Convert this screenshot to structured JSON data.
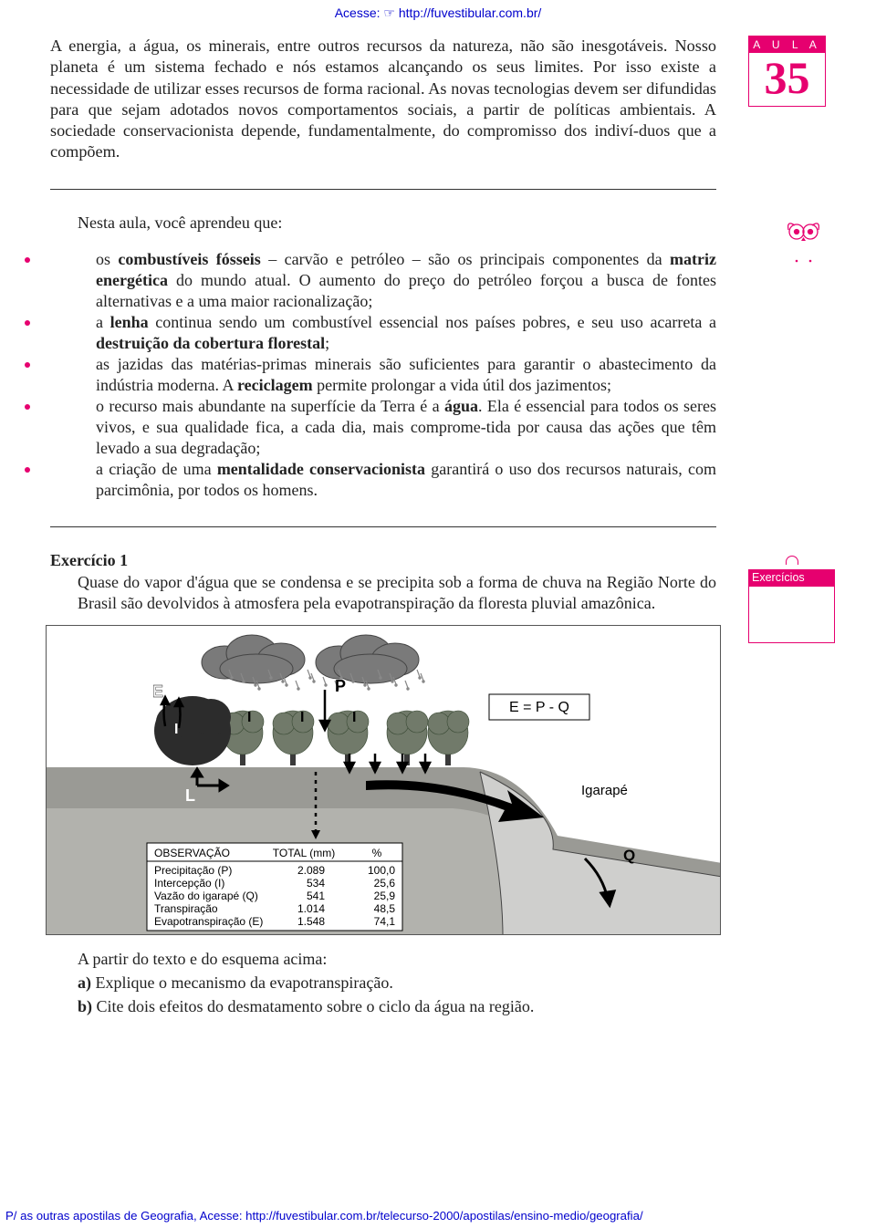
{
  "header": {
    "prefix": "Acesse: ",
    "hand": "☞ ",
    "url": "http://fuvestibular.com.br/"
  },
  "aula": {
    "label": "A U L A",
    "number": "35"
  },
  "intro": "A energia, a água, os minerais, entre outros recursos da natureza, não são inesgotáveis. Nosso planeta é um sistema fechado e nós estamos alcançando os seus limites. Por isso existe a necessidade de utilizar esses recursos de forma racional. As novas tecnologias devem ser difundidas para que sejam adotados novos comportamentos sociais, a partir de políticas ambientais. A sociedade conservacionista depende, fundamentalmente, do compromisso dos indiví-duos que a compõem.",
  "summary": {
    "lead": "Nesta aula, você aprendeu que:",
    "items": [
      {
        "pre": "os ",
        "b1": "combustíveis fósseis",
        "mid1": " – carvão e petróleo – são os principais componentes da ",
        "b2": "matriz energética",
        "after": " do mundo atual. O aumento do preço do petróleo forçou a busca de fontes alternativas e a uma maior racionalização;"
      },
      {
        "pre": "a ",
        "b1": "lenha",
        "mid1": " continua sendo um combustível essencial nos países pobres, e seu uso acarreta a ",
        "b2": "destruição da cobertura florestal",
        "after": ";"
      },
      {
        "pre": "as jazidas das matérias-primas minerais são suficientes para garantir o abastecimento da indústria moderna. A ",
        "b1": "reciclagem",
        "mid1": " permite prolongar a vida útil dos jazimentos;",
        "b2": "",
        "after": ""
      },
      {
        "pre": "o recurso mais abundante na superfície da Terra é a ",
        "b1": "água",
        "mid1": ". Ela é essencial para todos os seres vivos, e sua qualidade fica, a cada dia, mais comprome-tida por causa das ações que têm levado a sua degradação;",
        "b2": "",
        "after": ""
      },
      {
        "pre": "a criação de uma ",
        "b1": "mentalidade conservacionista",
        "mid1": " garantirá o uso dos recursos naturais, com parcimônia, por todos os homens.",
        "b2": "",
        "after": ""
      }
    ]
  },
  "exercise": {
    "badge": "Exercícios",
    "title": "Exercício 1",
    "body": "Quase   do vapor d'água que se condensa e se precipita sob a forma de chuva na Região Norte do Brasil são devolvidos à atmosfera pela evapotranspiração da floresta pluvial amazônica.",
    "after_lead": "A partir do texto e do esquema acima:",
    "qa_label": "a)",
    "qa_text": " Explique o mecanismo da evapotranspiração.",
    "qb_label": "b)",
    "qb_text": " Cite dois efeitos do desmatamento sobre o ciclo da água na região."
  },
  "figure": {
    "equation": "E = P - Q",
    "igarape": "Igarapé",
    "labels": {
      "E": "E",
      "P": "P",
      "I": "I",
      "L": "L",
      "Q": "Q"
    },
    "table": {
      "h1": "OBSERVAÇÃO",
      "h2": "TOTAL (mm)",
      "h3": "%",
      "rows": [
        [
          "Precipitação (P)",
          "2.089",
          "100,0"
        ],
        [
          "Intercepção (I)",
          "534",
          "25,6"
        ],
        [
          "Vazão do igarapé (Q)",
          "541",
          "25,9"
        ],
        [
          "Transpiração",
          "1.014",
          "48,5"
        ],
        [
          "Evapotranspiração (E)",
          "1.548",
          "74,1"
        ]
      ]
    },
    "colors": {
      "cloud": "#7a7a7a",
      "cloud_line": "#444",
      "tree_dark": "#2c2c2c",
      "tree_green": "#717a6a",
      "trunk": "#3a3a3a",
      "ground_top": "#9a9a95",
      "ground_mid": "#b6b6b2",
      "river": "#cfcfcd",
      "box_bg": "#ffffff",
      "box_line": "#000"
    }
  },
  "footer": {
    "pre": "P/ as outras apostilas de Geografia, Acesse: ",
    "url": "http://fuvestibular.com.br/telecurso-2000/apostilas/ensino-medio/geografia/"
  }
}
